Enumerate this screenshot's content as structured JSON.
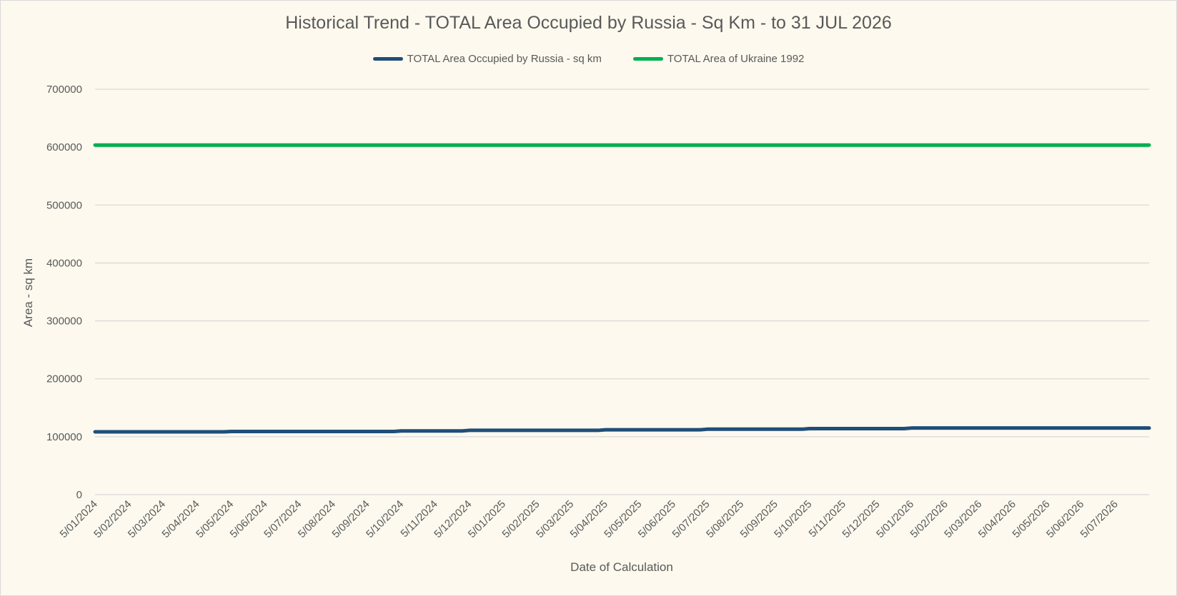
{
  "chart_data": {
    "type": "line",
    "title": "Historical Trend - TOTAL Area Occupied by Russia - Sq Km - to 31 JUL 2026",
    "xlabel": "Date of Calculation",
    "ylabel": "Area - sq km",
    "ylim": [
      0,
      700000
    ],
    "yticks": [
      "0",
      "100000",
      "200000",
      "300000",
      "400000",
      "500000",
      "600000",
      "700000"
    ],
    "categories": [
      "5/01/2024",
      "5/02/2024",
      "5/03/2024",
      "5/04/2024",
      "5/05/2024",
      "5/06/2024",
      "5/07/2024",
      "5/08/2024",
      "5/09/2024",
      "5/10/2024",
      "5/11/2024",
      "5/12/2024",
      "5/01/2025",
      "5/02/2025",
      "5/03/2025",
      "5/04/2025",
      "5/05/2025",
      "5/06/2025",
      "5/07/2025",
      "5/08/2025",
      "5/09/2025",
      "5/10/2025",
      "5/11/2025",
      "5/12/2025",
      "5/01/2026",
      "5/02/2026",
      "5/03/2026",
      "5/04/2026",
      "5/05/2026",
      "5/06/2026",
      "5/07/2026"
    ],
    "grid": true,
    "legend_position": "top",
    "series": [
      {
        "name": "TOTAL Area Occupied by Russia - sq km",
        "color": "#1f4e79",
        "values": [
          108500,
          108500,
          108500,
          108500,
          109000,
          109000,
          109000,
          109000,
          109000,
          110000,
          110000,
          111000,
          111000,
          111000,
          111000,
          112000,
          112000,
          112000,
          113000,
          113000,
          113000,
          114000,
          114000,
          114000,
          115000,
          115000,
          115000,
          115000,
          115000,
          115000,
          115000
        ]
      },
      {
        "name": "TOTAL Area of Ukraine 1992",
        "color": "#00b050",
        "values": [
          603550,
          603550,
          603550,
          603550,
          603550,
          603550,
          603550,
          603550,
          603550,
          603550,
          603550,
          603550,
          603550,
          603550,
          603550,
          603550,
          603550,
          603550,
          603550,
          603550,
          603550,
          603550,
          603550,
          603550,
          603550,
          603550,
          603550,
          603550,
          603550,
          603550,
          603550
        ]
      }
    ]
  }
}
